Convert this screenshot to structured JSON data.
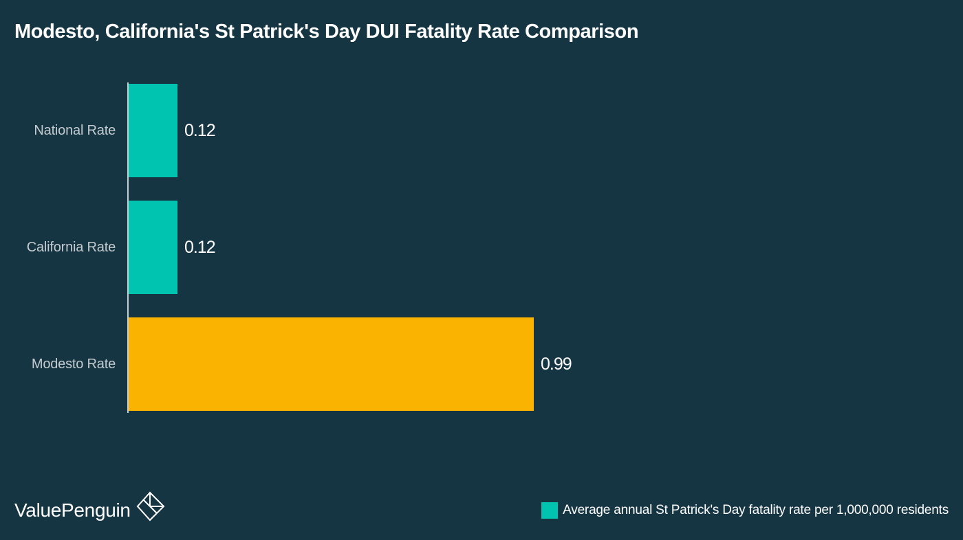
{
  "colors": {
    "background": "#163543",
    "teal": "#00c4b0",
    "gold": "#f9b300",
    "axis": "#c7cdd0",
    "label": "#c3cbcf"
  },
  "chart_data": {
    "type": "bar",
    "orientation": "horizontal",
    "title": "Modesto, California's St Patrick's Day DUI Fatality Rate Comparison",
    "xlabel": "",
    "ylabel": "",
    "categories": [
      "National Rate",
      "California Rate",
      "Modesto Rate"
    ],
    "values": [
      0.12,
      0.12,
      0.99
    ],
    "value_labels": [
      "0.12",
      "0.12",
      "0.99"
    ],
    "bar_colors": [
      "#00c4b0",
      "#00c4b0",
      "#f9b300"
    ],
    "xlim": [
      0,
      1.2
    ],
    "grid": false,
    "legend": {
      "position": "bottom-right",
      "entries": [
        {
          "label": "Average annual St Patrick's Day fatality rate per 1,000,000 residents",
          "color": "#00c4b0"
        }
      ]
    }
  },
  "branding": {
    "logo_text": "ValuePenguin",
    "logo_icon": "valuepenguin-diamond-icon"
  }
}
